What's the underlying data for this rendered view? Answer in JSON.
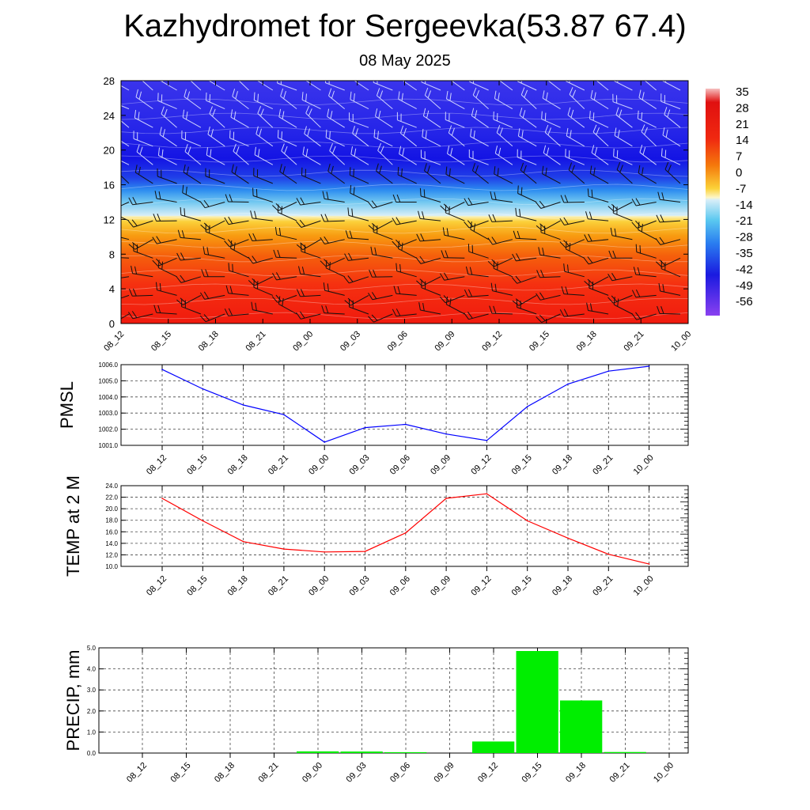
{
  "title": "Kazhydromet for Sergeevka(53.87 67.4)",
  "subtitle": "08 May 2025",
  "colors": {
    "pmsl_line": "#0000ff",
    "temp_line": "#ff0000",
    "precip_bar": "#00ee00",
    "grid": "#444444"
  },
  "chart_data": [
    {
      "type": "heatmap",
      "title": "",
      "xlabel": "",
      "ylabel": "",
      "x": [
        "08_12",
        "08_15",
        "08_18",
        "08_21",
        "09_00",
        "09_03",
        "09_06",
        "09_09",
        "09_12",
        "09_15",
        "09_18",
        "09_21",
        "10_00"
      ],
      "y_ticks": [
        0,
        4,
        8,
        12,
        16,
        20,
        24,
        28
      ],
      "ylim": [
        0,
        28
      ],
      "colorbar_labels": [
        "35",
        "28",
        "21",
        "14",
        "7",
        "0",
        "-7",
        "-14",
        "-21",
        "-28",
        "-35",
        "-42",
        "-49",
        "-56"
      ],
      "bands": [
        {
          "y": [
            0,
            6
          ],
          "value": 24,
          "color": "#f52810"
        },
        {
          "y": [
            6,
            10
          ],
          "value": 14,
          "color": "#f57a0c"
        },
        {
          "y": [
            10,
            12.3
          ],
          "value": 3,
          "color": "#fbd238"
        },
        {
          "y": [
            12.3,
            16
          ],
          "value": -24,
          "color": "#5ac8f0"
        },
        {
          "y": [
            16,
            28
          ],
          "value": -56,
          "color": "#2020e0"
        }
      ],
      "wind_barbs": true
    },
    {
      "type": "line",
      "title": "",
      "xlabel": "",
      "ylabel": "PMSL",
      "categories": [
        "08_12",
        "08_15",
        "08_18",
        "08_21",
        "09_00",
        "09_03",
        "09_06",
        "09_09",
        "09_12",
        "09_15",
        "09_18",
        "09_21",
        "10_00"
      ],
      "series": [
        {
          "values": [
            1005.7,
            1004.5,
            1003.5,
            1002.9,
            1001.2,
            1002.1,
            1002.3,
            1001.7,
            1001.3,
            1003.4,
            1004.8,
            1005.6,
            1005.9
          ]
        }
      ],
      "ylim": [
        1001.0,
        1006.0
      ],
      "y_ticks": [
        "1001.0",
        "1002.0",
        "1003.0",
        "1004.0",
        "1005.0",
        "1006.0"
      ],
      "grid": true
    },
    {
      "type": "line",
      "title": "",
      "xlabel": "",
      "ylabel": "TEMP at 2 M",
      "categories": [
        "08_12",
        "08_15",
        "08_18",
        "08_21",
        "09_00",
        "09_03",
        "09_06",
        "09_09",
        "09_12",
        "09_15",
        "09_18",
        "09_21",
        "10_00"
      ],
      "series": [
        {
          "values": [
            21.8,
            17.9,
            14.3,
            13.0,
            12.5,
            12.6,
            15.8,
            21.8,
            22.6,
            17.9,
            14.9,
            12.1,
            10.4
          ]
        }
      ],
      "ylim": [
        10.0,
        24.0
      ],
      "y_ticks": [
        "10.0",
        "12.0",
        "14.0",
        "16.0",
        "18.0",
        "20.0",
        "22.0",
        "24.0"
      ],
      "grid": true
    },
    {
      "type": "bar",
      "title": "",
      "xlabel": "",
      "ylabel": "PRECIP, mm",
      "categories": [
        "08_12",
        "08_15",
        "08_18",
        "08_21",
        "09_00",
        "09_03",
        "09_06",
        "09_09",
        "09_12",
        "09_15",
        "09_18",
        "09_21",
        "10_00"
      ],
      "series": [
        {
          "values": [
            0,
            0,
            0,
            0,
            0.08,
            0.07,
            0.04,
            0,
            0.55,
            4.85,
            2.5,
            0.05,
            0
          ]
        }
      ],
      "ylim": [
        0,
        5.0
      ],
      "y_ticks": [
        "0.0",
        "1.0",
        "2.0",
        "3.0",
        "4.0",
        "5.0"
      ],
      "grid": true
    }
  ]
}
